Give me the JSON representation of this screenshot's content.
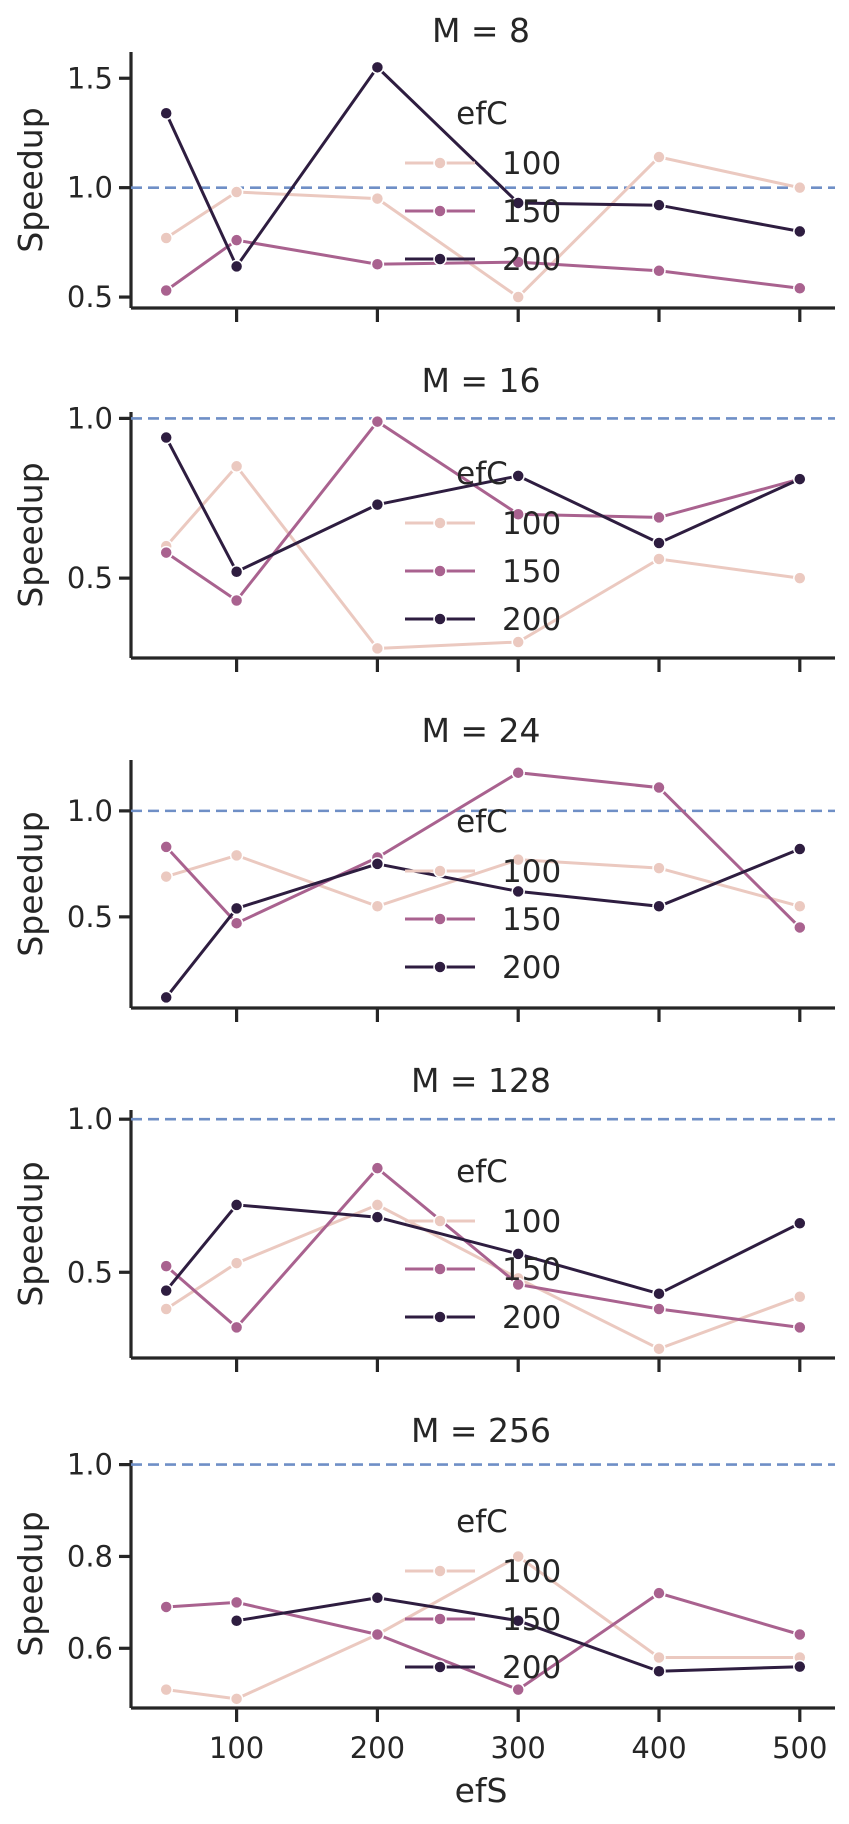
{
  "chart_data": [
    {
      "type": "line",
      "title": "M = 8",
      "ylabel": "Speedup",
      "xlabel": "",
      "x": [
        50,
        100,
        200,
        300,
        400,
        500
      ],
      "xticks": [
        100,
        200,
        300,
        400,
        500
      ],
      "ylim": [
        0.45,
        1.62
      ],
      "yticks": [
        "0.5",
        "1.0",
        "1.5"
      ],
      "yticks_values": [
        0.5,
        1.0,
        1.5
      ],
      "ref_line": 1.0,
      "legend_title": "efC",
      "series": [
        {
          "name": "100",
          "color": "#ebc9c0",
          "values": [
            0.77,
            0.98,
            0.95,
            0.5,
            1.14,
            1.0
          ]
        },
        {
          "name": "150",
          "color": "#a9628f",
          "values": [
            0.53,
            0.76,
            0.65,
            0.66,
            0.62,
            0.54
          ]
        },
        {
          "name": "200",
          "color": "#2e1d40",
          "values": [
            1.34,
            0.64,
            1.55,
            0.93,
            0.92,
            0.8
          ]
        }
      ]
    },
    {
      "type": "line",
      "title": "M = 16",
      "ylabel": "Speedup",
      "xlabel": "",
      "x": [
        50,
        100,
        200,
        300,
        400,
        500
      ],
      "xticks": [
        100,
        200,
        300,
        400,
        500
      ],
      "ylim": [
        0.25,
        1.02
      ],
      "yticks": [
        "0.5",
        "1.0"
      ],
      "yticks_values": [
        0.5,
        1.0
      ],
      "ref_line": 1.0,
      "legend_title": "efC",
      "series": [
        {
          "name": "100",
          "color": "#ebc9c0",
          "values": [
            0.6,
            0.85,
            0.28,
            0.3,
            0.56,
            0.5
          ]
        },
        {
          "name": "150",
          "color": "#a9628f",
          "values": [
            0.58,
            0.43,
            0.99,
            0.7,
            0.69,
            0.81
          ]
        },
        {
          "name": "200",
          "color": "#2e1d40",
          "values": [
            0.94,
            0.52,
            0.73,
            0.82,
            0.61,
            0.81
          ]
        }
      ]
    },
    {
      "type": "line",
      "title": "M = 24",
      "ylabel": "Speedup",
      "xlabel": "",
      "x": [
        50,
        100,
        200,
        300,
        400,
        500
      ],
      "xticks": [
        100,
        200,
        300,
        400,
        500
      ],
      "ylim": [
        0.07,
        1.24
      ],
      "yticks": [
        "0.5",
        "1.0"
      ],
      "yticks_values": [
        0.5,
        1.0
      ],
      "ref_line": 1.0,
      "legend_title": "efC",
      "series": [
        {
          "name": "100",
          "color": "#ebc9c0",
          "values": [
            0.69,
            0.79,
            0.55,
            0.77,
            0.73,
            0.55
          ]
        },
        {
          "name": "150",
          "color": "#a9628f",
          "values": [
            0.83,
            0.47,
            0.78,
            1.18,
            1.11,
            0.45
          ]
        },
        {
          "name": "200",
          "color": "#2e1d40",
          "values": [
            0.12,
            0.54,
            0.75,
            0.62,
            0.55,
            0.82
          ]
        }
      ]
    },
    {
      "type": "line",
      "title": "M = 128",
      "ylabel": "Speedup",
      "xlabel": "",
      "x": [
        50,
        100,
        200,
        300,
        400,
        500
      ],
      "xticks": [
        100,
        200,
        300,
        400,
        500
      ],
      "ylim": [
        0.22,
        1.03
      ],
      "yticks": [
        "0.5",
        "1.0"
      ],
      "yticks_values": [
        0.5,
        1.0
      ],
      "ref_line": 1.0,
      "legend_title": "efC",
      "series": [
        {
          "name": "100",
          "color": "#ebc9c0",
          "values": [
            0.38,
            0.53,
            0.72,
            0.48,
            0.25,
            0.42
          ]
        },
        {
          "name": "150",
          "color": "#a9628f",
          "values": [
            0.52,
            0.32,
            0.84,
            0.46,
            0.38,
            0.32
          ]
        },
        {
          "name": "200",
          "color": "#2e1d40",
          "values": [
            0.44,
            0.72,
            0.68,
            0.56,
            0.43,
            0.66
          ]
        }
      ]
    },
    {
      "type": "line",
      "title": "M = 256",
      "ylabel": "Speedup",
      "xlabel": "efS",
      "x": [
        50,
        100,
        200,
        300,
        400,
        500
      ],
      "xticks": [
        100,
        200,
        300,
        400,
        500
      ],
      "ylim": [
        0.47,
        1.01
      ],
      "yticks": [
        "0.6",
        "0.8",
        "1.0"
      ],
      "yticks_values": [
        0.6,
        0.8,
        1.0
      ],
      "ref_line": 1.0,
      "legend_title": "efC",
      "series": [
        {
          "name": "100",
          "color": "#ebc9c0",
          "values": [
            0.51,
            0.49,
            0.63,
            0.8,
            0.58,
            0.58
          ]
        },
        {
          "name": "150",
          "color": "#a9628f",
          "values": [
            0.69,
            0.7,
            0.63,
            0.51,
            0.72,
            0.63
          ]
        },
        {
          "name": "200",
          "color": "#2e1d40",
          "values": [
            null,
            0.66,
            0.71,
            0.66,
            0.55,
            0.56
          ]
        }
      ]
    }
  ]
}
